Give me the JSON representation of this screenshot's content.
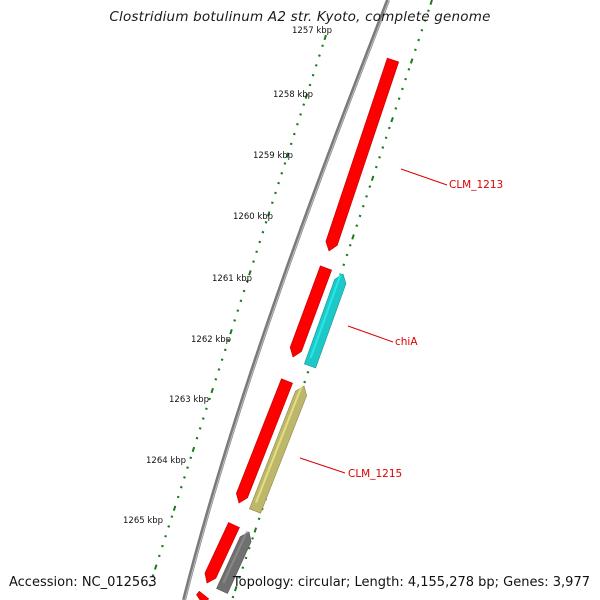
{
  "title": "Clostridium botulinum A2 str. Kyoto, complete genome",
  "footer": {
    "accession": "Accession: NC_012563",
    "topology": "Topology: circular; Length: 4,155,278 bp; Genes: 3,977"
  },
  "ruler": {
    "tick_labels": [
      "1257 kbp",
      "1258 kbp",
      "1259 kbp",
      "1260 kbp",
      "1261 kbp",
      "1262 kbp",
      "1263 kbp",
      "1264 kbp",
      "1265 kbp"
    ]
  },
  "genes": [
    {
      "label": "CLM_1213",
      "strand": "forward",
      "color": "#ff0000"
    },
    {
      "label": "",
      "strand": "forward",
      "color": "#ff0000"
    },
    {
      "label": "chiA",
      "strand": "reverse",
      "color": "#1ec8c8"
    },
    {
      "label": "",
      "strand": "forward",
      "color": "#ff0000"
    },
    {
      "label": "CLM_1215",
      "strand": "reverse",
      "color": "#bdb76b"
    },
    {
      "label": "",
      "strand": "forward",
      "color": "#ff0000"
    },
    {
      "label": "",
      "strand": "reverse",
      "color": "#707070"
    },
    {
      "label": "",
      "strand": "forward",
      "color": "#ff0000"
    }
  ],
  "colors": {
    "forward_gene": "#ff0000",
    "chiA": "#1ec8c8",
    "CLM_1215": "#bdb76b",
    "grey_gene": "#707070",
    "backbone": "#808080",
    "tick_marks": "#1a7a1a",
    "label_text": "#dd0000"
  }
}
